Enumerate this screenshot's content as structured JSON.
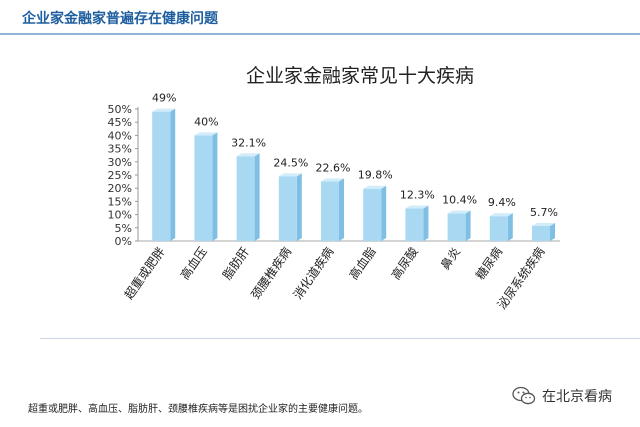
{
  "header": {
    "title": "企业家金融家普遍存在健康问题"
  },
  "chart_data": {
    "type": "bar",
    "title": "企业家金融家常见十大疾病",
    "categories": [
      "超重或肥胖",
      "高血压",
      "脂肪肝",
      "颈腰椎疾病",
      "消化道疾病",
      "高血脂",
      "高尿酸",
      "鼻炎",
      "糖尿病",
      "泌尿系统疾病"
    ],
    "values": [
      49,
      40,
      32.1,
      24.5,
      22.6,
      19.8,
      12.3,
      10.4,
      9.4,
      5.7
    ],
    "value_labels": [
      "49%",
      "40%",
      "32.1%",
      "24.5%",
      "22.6%",
      "19.8%",
      "12.3%",
      "10.4%",
      "9.4%",
      "5.7%"
    ],
    "ylim": [
      0,
      50
    ],
    "yticks": [
      "0%",
      "5%",
      "10%",
      "15%",
      "20%",
      "25%",
      "30%",
      "35%",
      "40%",
      "45%",
      "50%"
    ],
    "bar_color": "#a9d8f2",
    "grid": false,
    "legend": "none"
  },
  "footer": {
    "note": "超重或肥胖、高血压、脂肪肝、颈腰椎疾病等是困扰企业家的主要健康问题。",
    "watermark": "在北京看病",
    "watermark_icon": "wechat-icon"
  }
}
